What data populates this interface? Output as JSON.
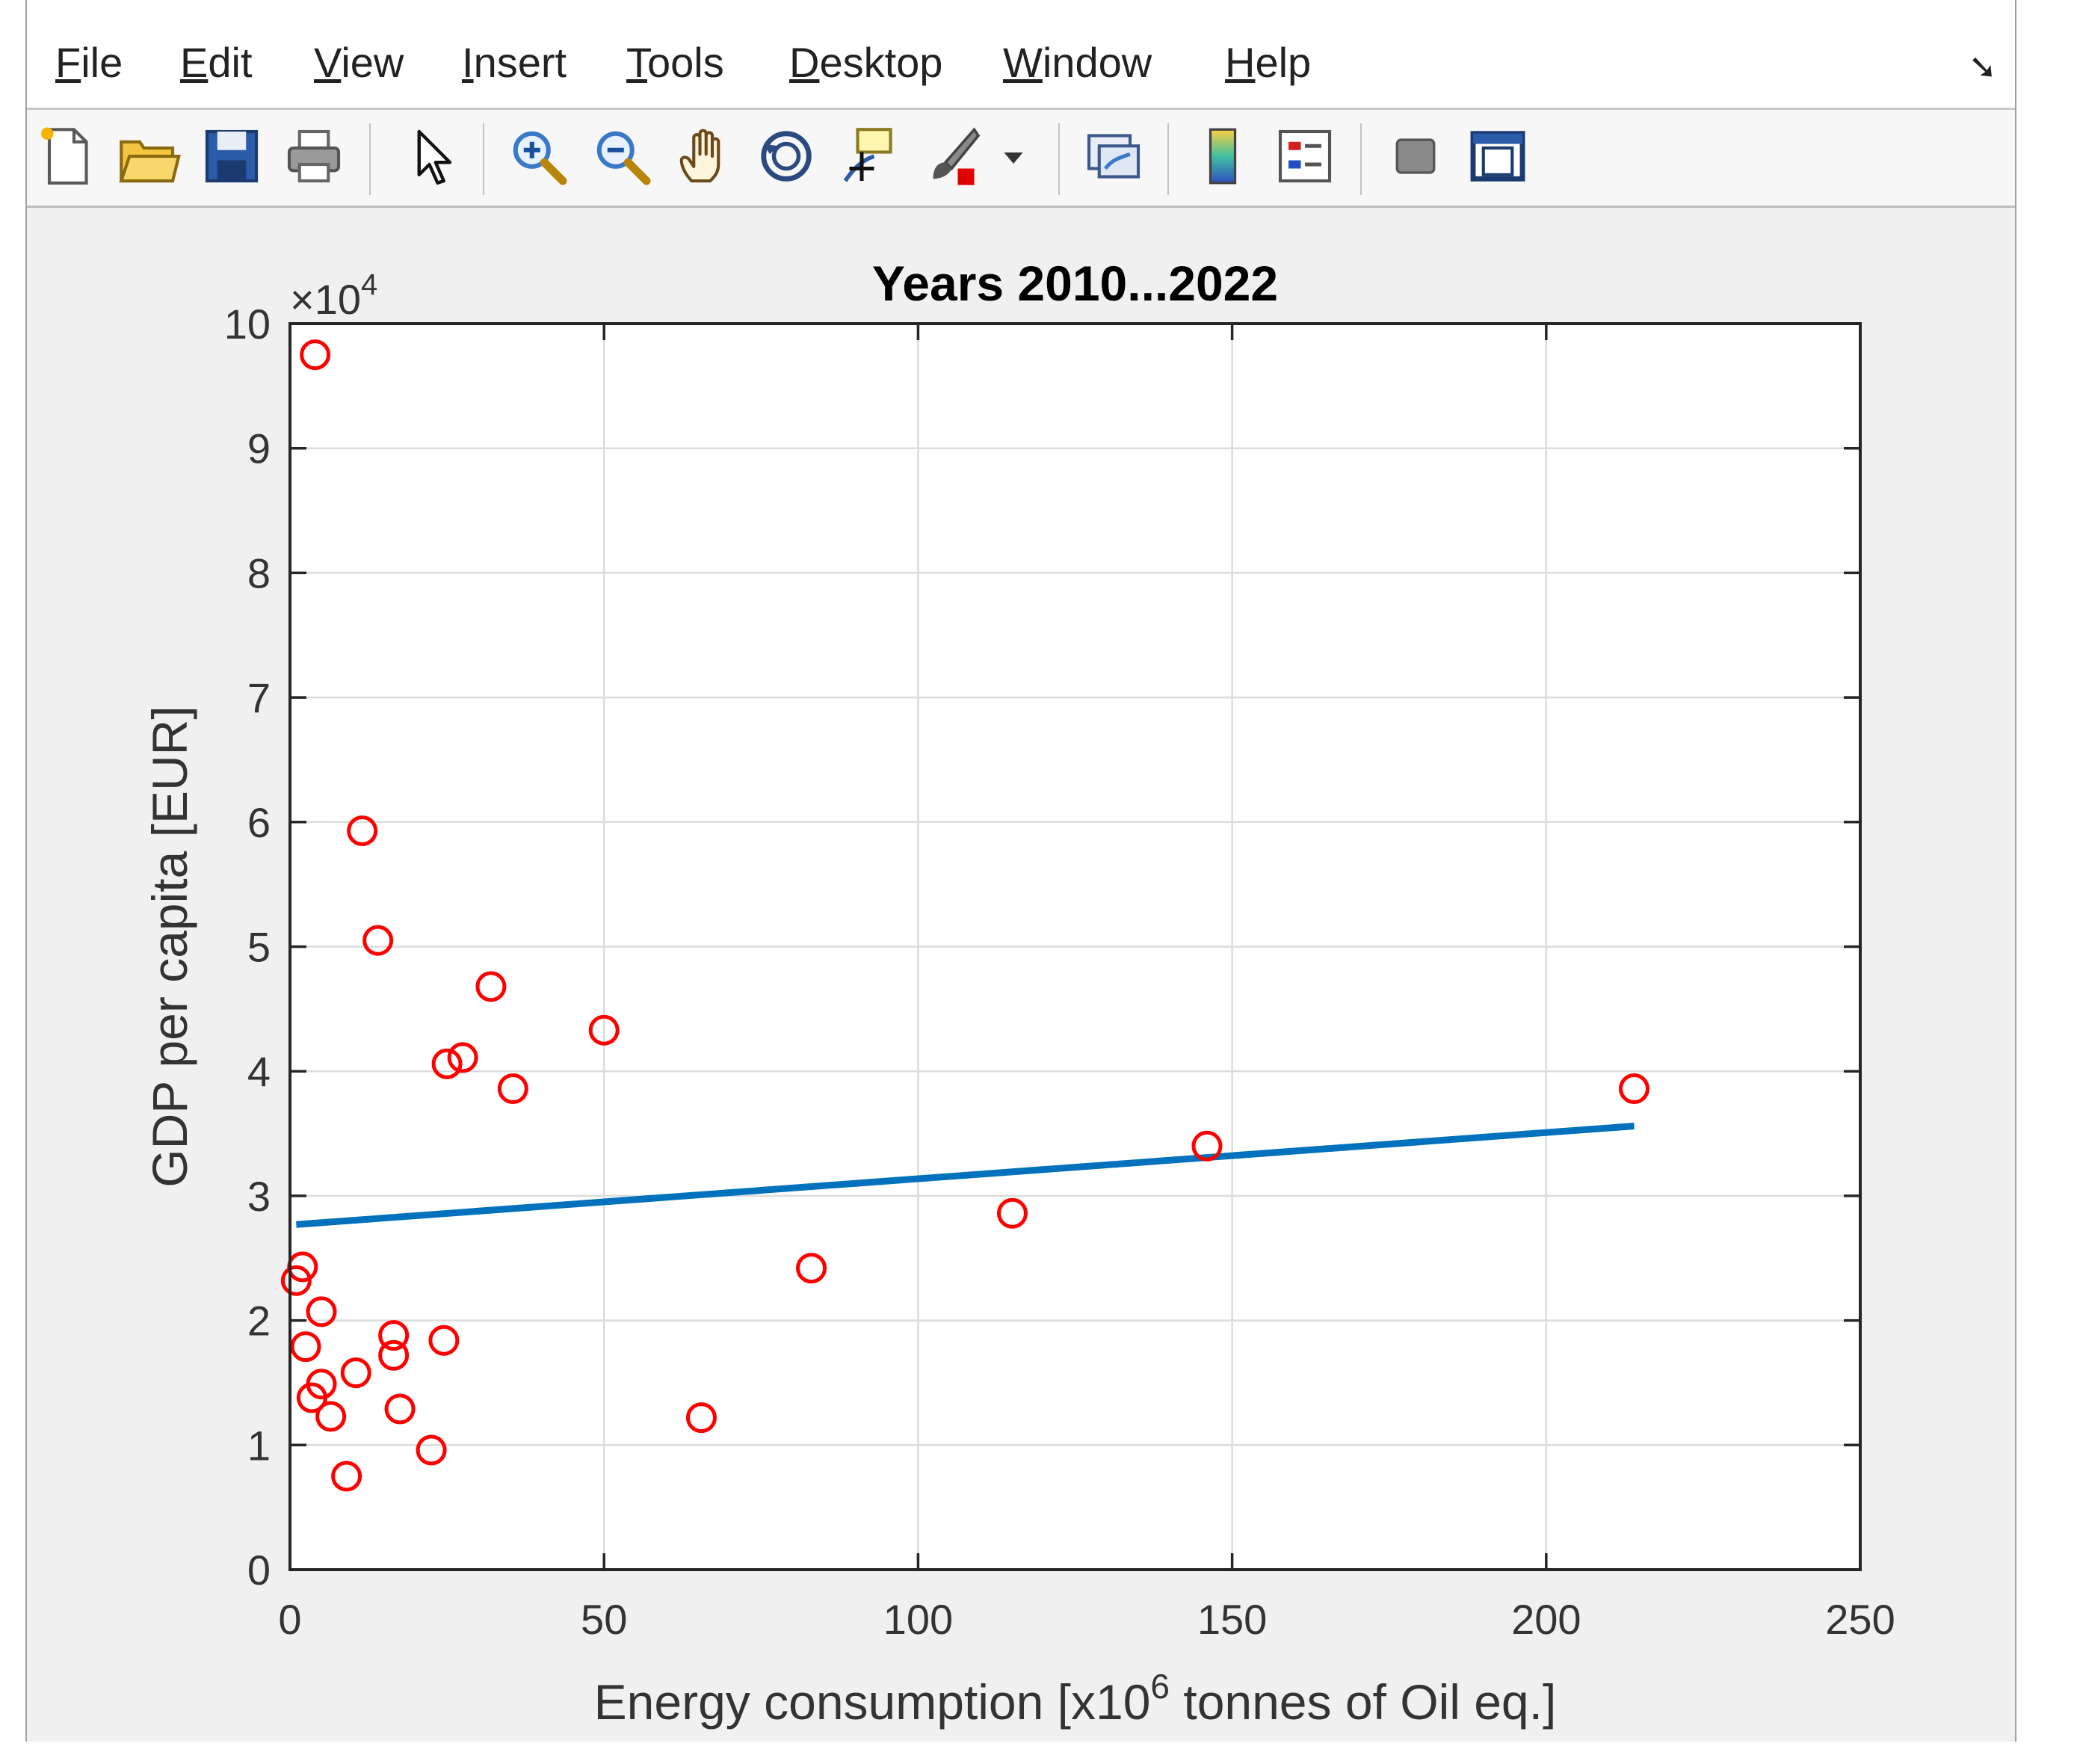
{
  "menu": {
    "items": [
      {
        "label": "File",
        "accel": "F"
      },
      {
        "label": "Edit",
        "accel": "E"
      },
      {
        "label": "View",
        "accel": "V"
      },
      {
        "label": "Insert",
        "accel": "I"
      },
      {
        "label": "Tools",
        "accel": "T"
      },
      {
        "label": "Desktop",
        "accel": "D"
      },
      {
        "label": "Window",
        "accel": "W"
      },
      {
        "label": "Help",
        "accel": "H"
      }
    ],
    "dock_icon": "dock-arrow-icon"
  },
  "toolbar": {
    "icons": [
      "new-figure-icon",
      "open-file-icon",
      "save-icon",
      "print-icon",
      "pointer-icon",
      "zoom-in-icon",
      "zoom-out-icon",
      "pan-hand-icon",
      "rotate-3d-icon",
      "data-cursor-icon",
      "brush-icon",
      "brush-dropdown-icon",
      "link-plot-icon",
      "colorbar-icon",
      "legend-icon",
      "hide-plot-tools-icon",
      "show-plot-tools-icon"
    ]
  },
  "colors": {
    "marker": "#ff0000",
    "fit_line": "#0072bd",
    "grid": "#dcdcdc",
    "axes": "#262626",
    "figure_bg": "#f0f0f0"
  },
  "chart_data": {
    "type": "scatter",
    "title": "Years 2010...2022",
    "xlabel_parts": {
      "before": "Energy consumption [x10",
      "sup": "6",
      "after": " tonnes of Oil eq.]"
    },
    "ylabel": "GDP per capita [EUR]",
    "y_exponent_label": {
      "base": "×10",
      "sup": "4"
    },
    "xlim": [
      0,
      250
    ],
    "ylim": [
      0,
      100000
    ],
    "xticks": [
      0,
      50,
      100,
      150,
      200,
      250
    ],
    "xtick_labels": [
      "0",
      "50",
      "100",
      "150",
      "200",
      "250"
    ],
    "yticks": [
      0,
      10000,
      20000,
      30000,
      40000,
      50000,
      60000,
      70000,
      80000,
      90000,
      100000
    ],
    "ytick_labels": [
      "0",
      "1",
      "2",
      "3",
      "4",
      "5",
      "6",
      "7",
      "8",
      "9",
      "10"
    ],
    "grid": true,
    "series": [
      {
        "style": "red circles",
        "points": [
          {
            "x": 4,
            "y": 97500
          },
          {
            "x": 11.5,
            "y": 59300
          },
          {
            "x": 14,
            "y": 50500
          },
          {
            "x": 32,
            "y": 46800
          },
          {
            "x": 50,
            "y": 43300
          },
          {
            "x": 25,
            "y": 40600
          },
          {
            "x": 27.5,
            "y": 41100
          },
          {
            "x": 35.5,
            "y": 38600
          },
          {
            "x": 214,
            "y": 38600
          },
          {
            "x": 146,
            "y": 34000
          },
          {
            "x": 115,
            "y": 28600
          },
          {
            "x": 83,
            "y": 24200
          },
          {
            "x": 1,
            "y": 23200
          },
          {
            "x": 2,
            "y": 24300
          },
          {
            "x": 5,
            "y": 20700
          },
          {
            "x": 2.5,
            "y": 17900
          },
          {
            "x": 16.5,
            "y": 18800
          },
          {
            "x": 16.5,
            "y": 17200
          },
          {
            "x": 24.5,
            "y": 18400
          },
          {
            "x": 10.5,
            "y": 15800
          },
          {
            "x": 5,
            "y": 14900
          },
          {
            "x": 3.5,
            "y": 13800
          },
          {
            "x": 6.5,
            "y": 12300
          },
          {
            "x": 17.5,
            "y": 12900
          },
          {
            "x": 65.5,
            "y": 12200
          },
          {
            "x": 22.5,
            "y": 9600
          },
          {
            "x": 9,
            "y": 7500
          }
        ]
      },
      {
        "style": "blue line",
        "type": "line",
        "x": [
          1,
          214
        ],
        "y": [
          27700,
          35600
        ]
      }
    ]
  }
}
